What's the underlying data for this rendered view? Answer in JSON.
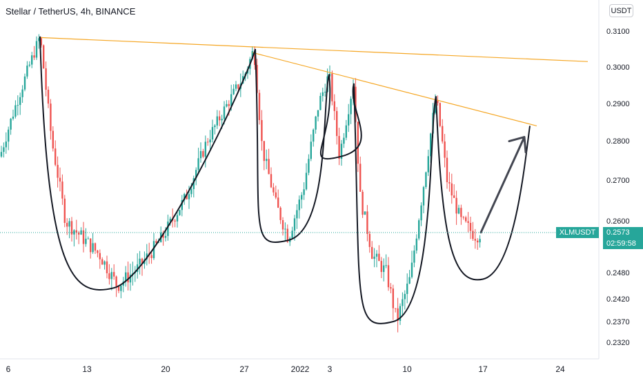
{
  "header": {
    "symbol": "Stellar / TetherUS",
    "interval": "4h",
    "exchange": "BINANCE",
    "currency_button": "USDT"
  },
  "price_badge": {
    "symbol": "XLMUSDT",
    "price": "0.2573",
    "countdown": "02:59:58"
  },
  "colors": {
    "up": "#26a69a",
    "down": "#ef5350",
    "trendline": "#f5a623",
    "drawing": "#131722",
    "arrow": "#434651"
  },
  "chart_data": {
    "type": "candlestick",
    "y_axis": {
      "ylim": [
        0.2285,
        0.3135
      ],
      "tick_labels": [
        "0.3100",
        "0.3000",
        "0.2900",
        "0.2800",
        "0.2700",
        "0.2600",
        "0.2480",
        "0.2420",
        "0.2370",
        "0.2320"
      ]
    },
    "x_axis": {
      "tick_labels": [
        "6",
        "13",
        "20",
        "27",
        "2022",
        "3",
        "10",
        "17",
        "24"
      ]
    },
    "last_price": 0.2573,
    "swing_points": [
      {
        "label": "high",
        "value": 0.3085
      },
      {
        "label": "low",
        "value": 0.2445
      },
      {
        "label": "high",
        "value": 0.305
      },
      {
        "label": "low",
        "value": 0.256
      },
      {
        "label": "high",
        "value": 0.298
      },
      {
        "label": "low",
        "value": 0.276
      },
      {
        "label": "high",
        "value": 0.2955
      },
      {
        "label": "low",
        "value": 0.237
      },
      {
        "label": "high",
        "value": 0.292
      },
      {
        "label": "current",
        "value": 0.2573
      }
    ],
    "trendlines": [
      {
        "start": 0.3082,
        "end": 0.3015
      },
      {
        "start": 0.304,
        "end": 0.284
      }
    ],
    "grid": false,
    "legend": "none"
  }
}
